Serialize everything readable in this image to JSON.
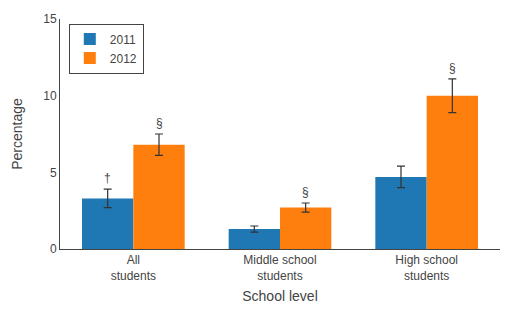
{
  "chart_data": {
    "type": "bar",
    "categories": [
      "All\nstudents",
      "Middle school\nstudents",
      "High school\nstudents"
    ],
    "series": [
      {
        "name": "2011",
        "values": [
          3.3,
          1.3,
          4.7
        ],
        "yerr": [
          0.6,
          0.2,
          0.7
        ],
        "annotations": [
          "†",
          null,
          null
        ]
      },
      {
        "name": "2012",
        "values": [
          6.8,
          2.7,
          10.0
        ],
        "yerr": [
          0.7,
          0.3,
          1.1
        ],
        "annotations": [
          "§",
          "§",
          "§"
        ]
      }
    ],
    "xlabel": "School level",
    "ylabel": "Percentage",
    "ylim": [
      0,
      15
    ],
    "yticks": [
      0,
      5,
      10,
      15
    ],
    "grid": false,
    "legend": "upper left"
  }
}
